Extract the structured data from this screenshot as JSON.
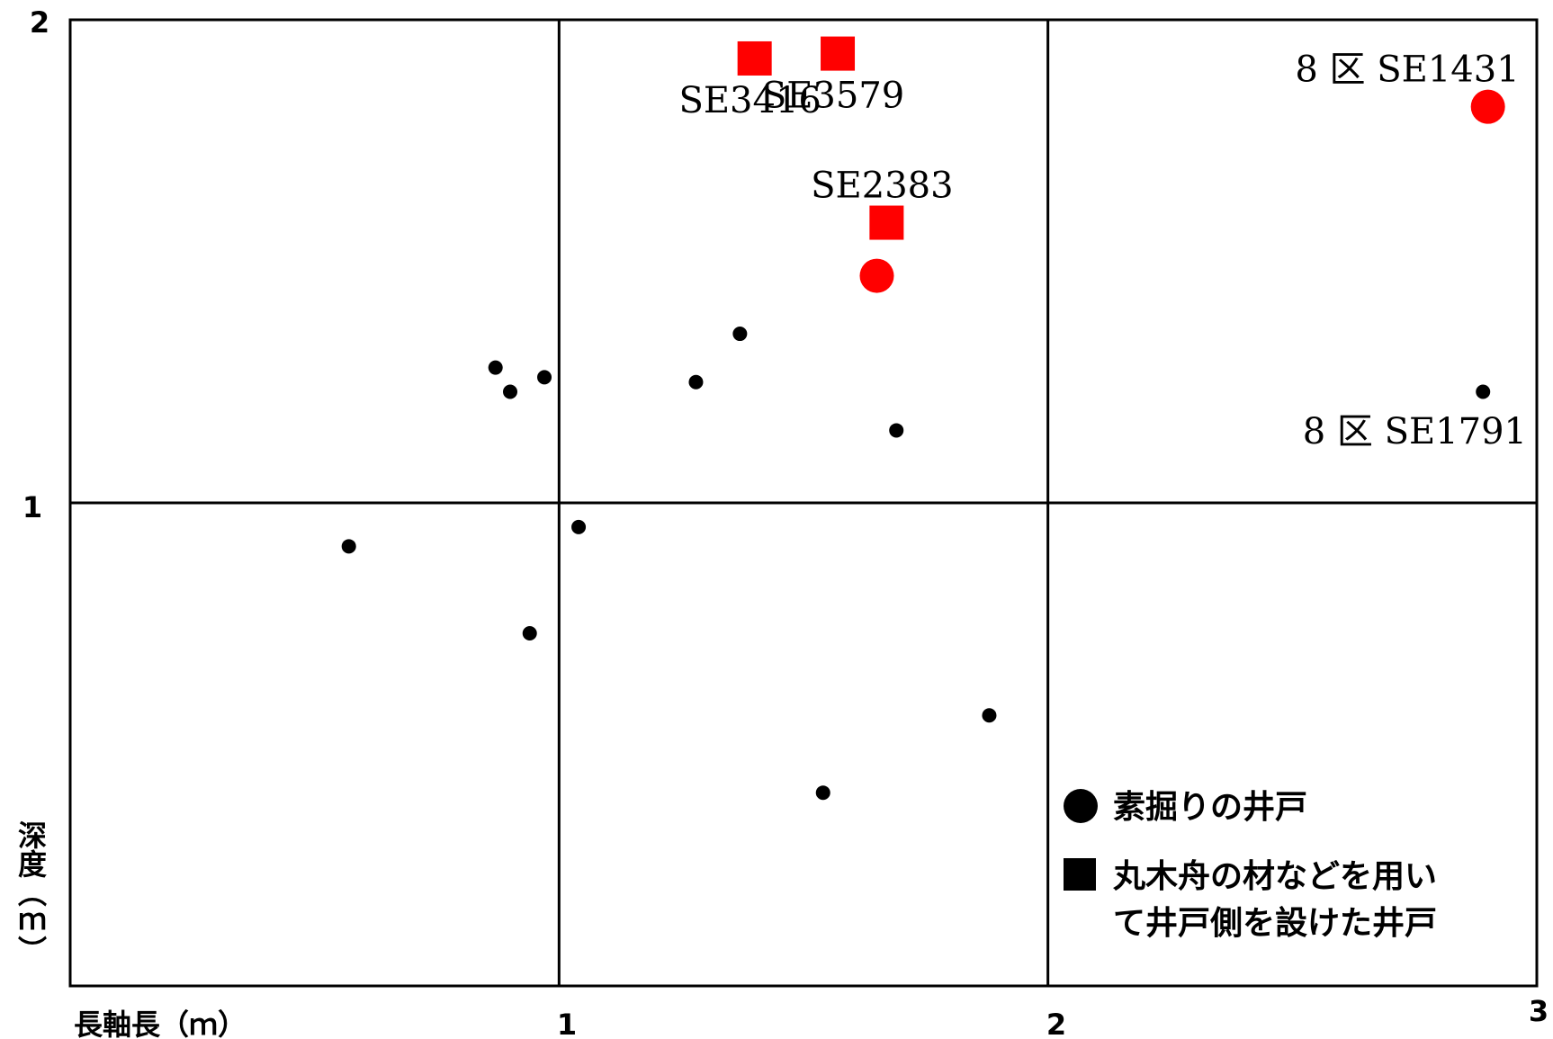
{
  "chart_data": {
    "type": "scatter",
    "xlabel": "長軸長（ｍ）",
    "ylabel": "深度（ｍ）",
    "xlim": [
      0,
      3
    ],
    "ylim": [
      0,
      2
    ],
    "x_ticks": [
      "1",
      "2",
      "3"
    ],
    "y_ticks": [
      "1",
      "2"
    ],
    "grid": true,
    "legend_position": "bottom-right",
    "series": [
      {
        "name": "素掘りの井戸",
        "marker": "circle",
        "color": "#000000",
        "points": [
          {
            "x": 0.87,
            "y": 1.28
          },
          {
            "x": 0.9,
            "y": 1.23
          },
          {
            "x": 0.97,
            "y": 1.26
          },
          {
            "x": 1.37,
            "y": 1.35
          },
          {
            "x": 1.28,
            "y": 1.25
          },
          {
            "x": 1.69,
            "y": 1.15
          },
          {
            "x": 2.89,
            "y": 1.23
          },
          {
            "x": 0.57,
            "y": 0.91
          },
          {
            "x": 1.04,
            "y": 0.95
          },
          {
            "x": 0.94,
            "y": 0.73
          },
          {
            "x": 1.88,
            "y": 0.56
          },
          {
            "x": 1.54,
            "y": 0.4
          }
        ]
      },
      {
        "name": "素掘りの井戸",
        "marker": "circle-large",
        "color": "#ff0000",
        "points": [
          {
            "x": 1.65,
            "y": 1.47,
            "label": ""
          },
          {
            "x": 2.9,
            "y": 1.82,
            "label": "8 区 SE1431"
          }
        ]
      },
      {
        "name": "丸木舟の材などを用いて井戸側を設けた井戸",
        "marker": "square",
        "color": "#ff0000",
        "points": [
          {
            "x": 1.4,
            "y": 1.92,
            "label": "SE3416"
          },
          {
            "x": 1.57,
            "y": 1.93,
            "label": "SE3579"
          },
          {
            "x": 1.67,
            "y": 1.58,
            "label": "SE2383"
          }
        ]
      }
    ],
    "annotations": [
      {
        "text": "8 区 SE1791"
      }
    ],
    "legend": [
      {
        "marker": "circle",
        "lines": [
          "素掘りの井戸"
        ]
      },
      {
        "marker": "square",
        "lines": [
          "丸木舟の材などを用い",
          "て井戸側を設けた井戸"
        ]
      }
    ]
  }
}
